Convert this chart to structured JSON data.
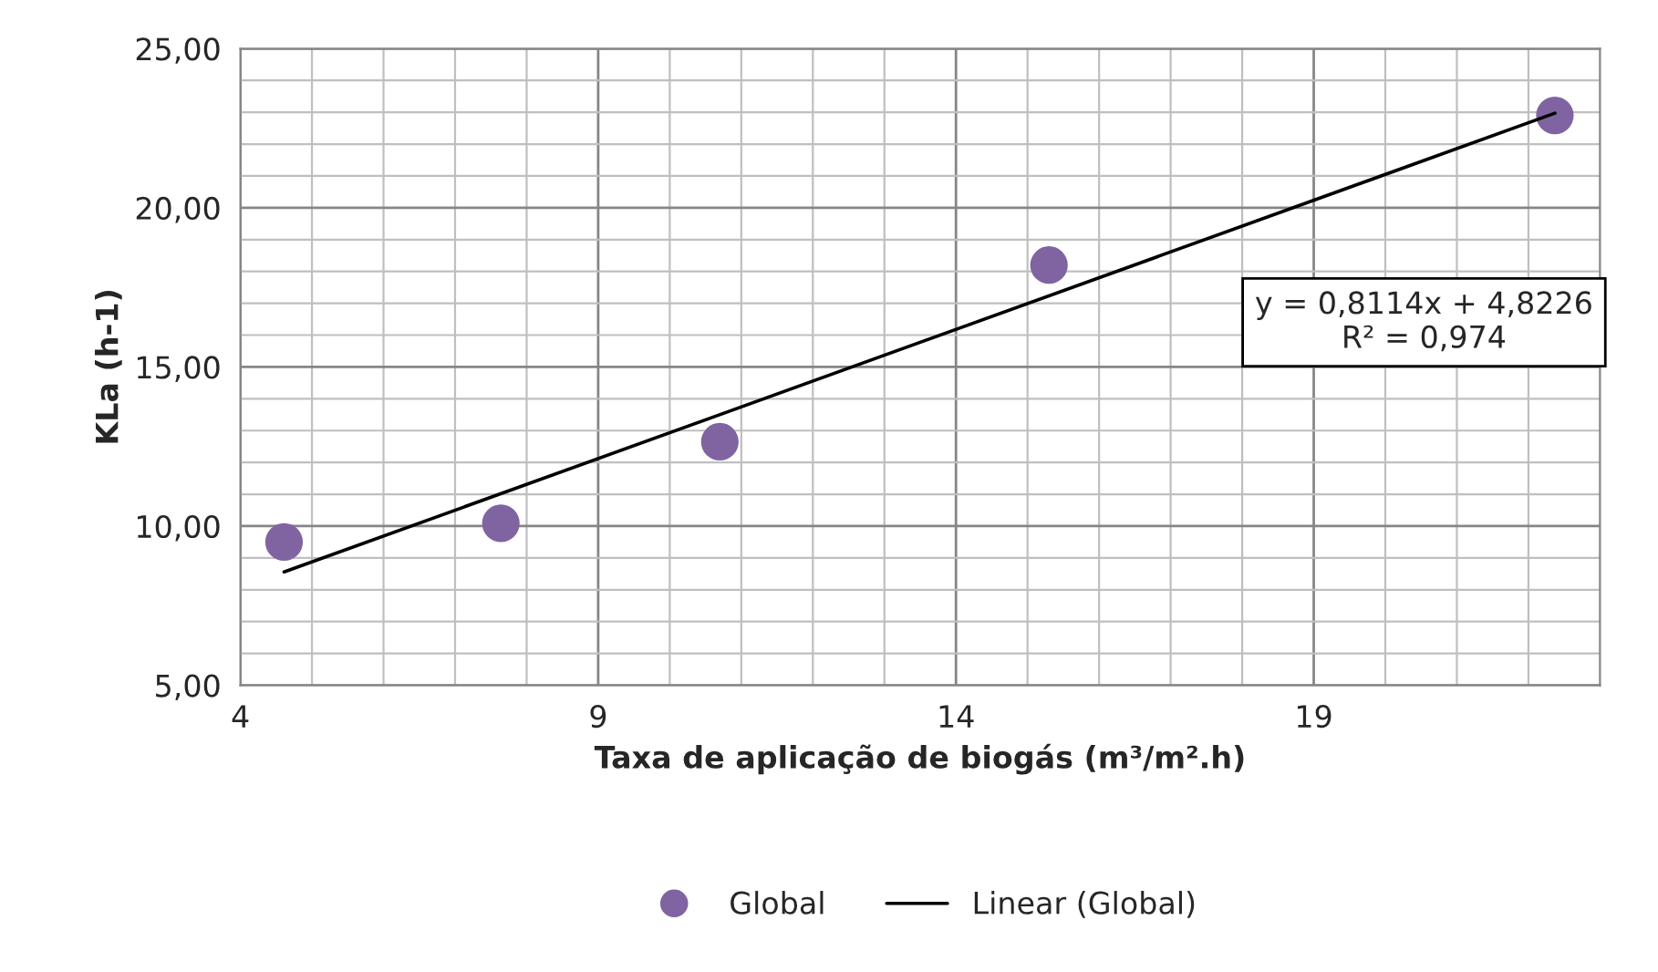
{
  "chart_data": {
    "type": "scatter",
    "xlabel": "Taxa de aplicação de biogás (m³/m².h)",
    "ylabel": "KLa (h-1)",
    "xlim": [
      4,
      23
    ],
    "xticks": [
      4,
      9,
      14,
      19
    ],
    "ylim": [
      5,
      25
    ],
    "yticks": [
      {
        "value": 5,
        "label": "5,00"
      },
      {
        "value": 10,
        "label": "10,00"
      },
      {
        "value": 15,
        "label": "15,00"
      },
      {
        "value": 20,
        "label": "20,00"
      },
      {
        "value": 25,
        "label": "25,00"
      }
    ],
    "grid": true,
    "legend": "bottom",
    "series": [
      {
        "name": "Global",
        "marker": "circle",
        "color": "#8064a2",
        "x": [
          4.61,
          7.64,
          10.7,
          15.3,
          22.37
        ],
        "values": [
          9.5,
          10.09,
          12.65,
          18.2,
          22.9
        ]
      },
      {
        "name": "Linear (Global)",
        "type": "line",
        "marker": "none",
        "color": "#000000",
        "x": [
          4.61,
          22.37
        ],
        "values": [
          8.56,
          22.97
        ]
      }
    ],
    "annotations": [
      "y = 0,8114x + 4,8226\nR² = 0,974"
    ]
  }
}
